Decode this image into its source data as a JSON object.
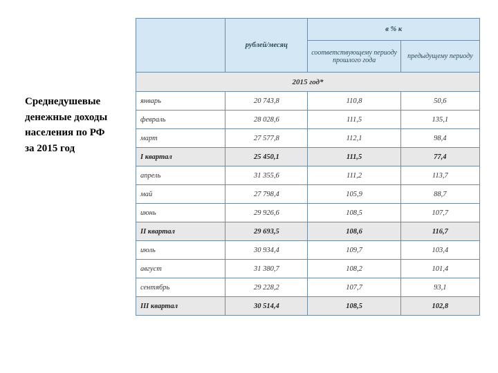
{
  "title_lines": [
    "Среднедушевые",
    "денежные доходы",
    "населения по РФ",
    "за 2015 год"
  ],
  "header": {
    "rubles_month": "рублей/месяц",
    "percent_to": "в % к",
    "prev_year_period": "соответствующему периоду прошлого года",
    "prev_period": "предыдущему периоду"
  },
  "section_label": "2015 год*",
  "rows": [
    {
      "type": "data",
      "label": "январь",
      "v1": "20 743,8",
      "v2": "110,8",
      "v3": "50,6"
    },
    {
      "type": "data",
      "label": "февраль",
      "v1": "28 028,6",
      "v2": "111,5",
      "v3": "135,1"
    },
    {
      "type": "data",
      "label": "март",
      "v1": "27 577,8",
      "v2": "112,1",
      "v3": "98,4"
    },
    {
      "type": "subtotal",
      "label": "I квартал",
      "v1": "25 450,1",
      "v2": "111,5",
      "v3": "77,4"
    },
    {
      "type": "data",
      "label": "апрель",
      "v1": "31 355,6",
      "v2": "111,2",
      "v3": "113,7"
    },
    {
      "type": "data",
      "label": "май",
      "v1": "27 798,4",
      "v2": "105,9",
      "v3": "88,7"
    },
    {
      "type": "data",
      "label": "июнь",
      "v1": "29 926,6",
      "v2": "108,5",
      "v3": "107,7"
    },
    {
      "type": "subtotal",
      "label": "II квартал",
      "v1": "29 693,5",
      "v2": "108,6",
      "v3": "116,7"
    },
    {
      "type": "data",
      "label": "июль",
      "v1": "30 934,4",
      "v2": "109,7",
      "v3": "103,4"
    },
    {
      "type": "data",
      "label": "август",
      "v1": "31 380,7",
      "v2": "108,2",
      "v3": "101,4"
    },
    {
      "type": "data",
      "label": "сентябрь",
      "v1": "29 228,2",
      "v2": "107,7",
      "v3": "93,1"
    },
    {
      "type": "subtotal",
      "label": "III квартал",
      "v1": "30 514,4",
      "v2": "108,5",
      "v3": "102,8"
    }
  ],
  "colors": {
    "header_bg": "#d4e7f4",
    "border": "#6a8ca6",
    "section_bg": "#e8e8e8",
    "text_header": "#2a4a5a"
  }
}
